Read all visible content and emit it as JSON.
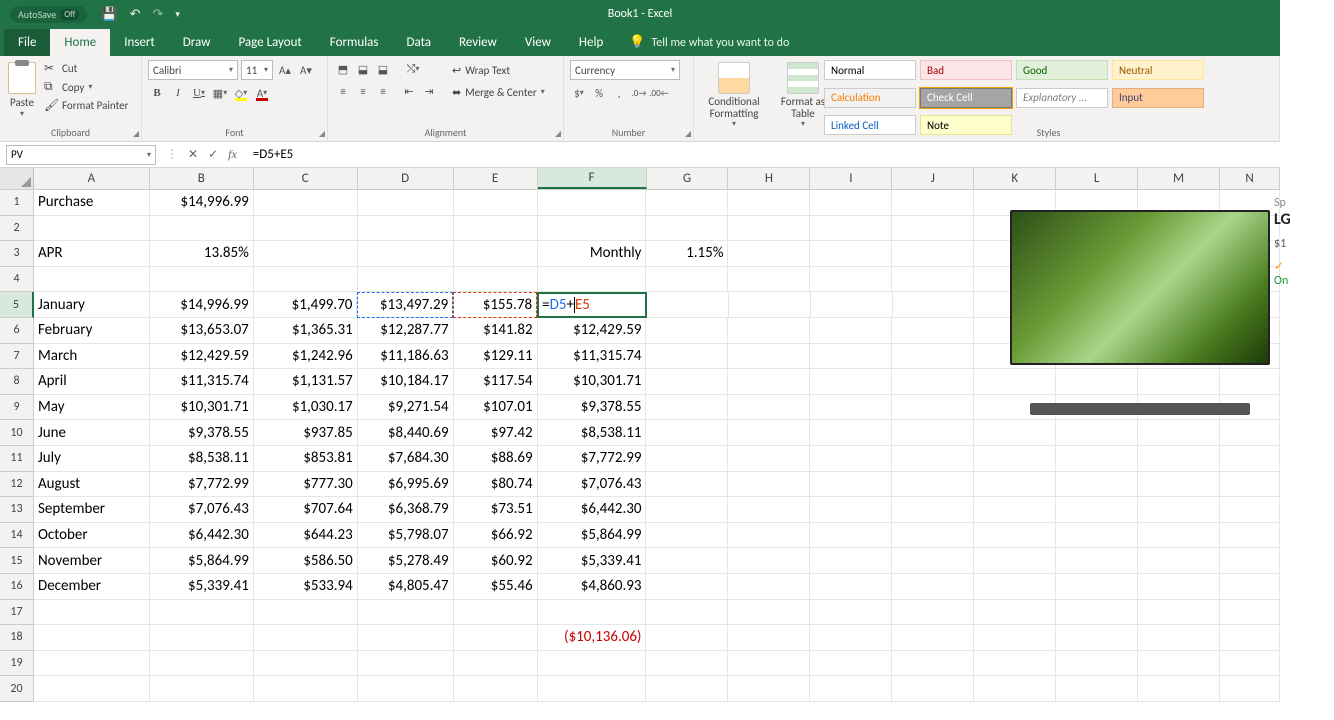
{
  "app": {
    "title": "Book1 - Excel",
    "autosave": "AutoSave",
    "autosave_state": "Off"
  },
  "ribbon": {
    "tabs": [
      "File",
      "Home",
      "Insert",
      "Draw",
      "Page Layout",
      "Formulas",
      "Data",
      "Review",
      "View",
      "Help"
    ],
    "active": "Home",
    "tellme": "Tell me what you want to do",
    "clipboard": {
      "paste": "Paste",
      "cut": "Cut",
      "copy": "Copy",
      "painter": "Format Painter",
      "label": "Clipboard"
    },
    "font": {
      "name": "Calibri",
      "size": "11",
      "label": "Font"
    },
    "alignment": {
      "wrap": "Wrap Text",
      "merge": "Merge & Center",
      "label": "Alignment"
    },
    "number": {
      "format": "Currency",
      "label": "Number"
    },
    "cond_format": "Conditional Formatting",
    "format_table": "Format as Table",
    "styles_label": "Styles",
    "styles": [
      {
        "t": "Normal",
        "bg": "#ffffff",
        "fg": "#000",
        "b": "#ccc"
      },
      {
        "t": "Bad",
        "bg": "#fbe5e6",
        "fg": "#9c0006",
        "b": "#f2c0c2"
      },
      {
        "t": "Good",
        "bg": "#e2efda",
        "fg": "#006100",
        "b": "#c6e0b4"
      },
      {
        "t": "Neutral",
        "bg": "#fff2cc",
        "fg": "#9c5700",
        "b": "#ffe699"
      },
      {
        "t": "Calculation",
        "bg": "#f2f2f2",
        "fg": "#fa7d00",
        "b": "#ccc"
      },
      {
        "t": "Check Cell",
        "bg": "#a5a5a5",
        "fg": "#fff",
        "b": "#777",
        "sel": true
      },
      {
        "t": "Explanatory ...",
        "bg": "#fff",
        "fg": "#7f7f7f",
        "b": "#ccc",
        "i": true
      },
      {
        "t": "Input",
        "bg": "#ffcc99",
        "fg": "#3f3f76",
        "b": "#e0b080"
      },
      {
        "t": "Linked Cell",
        "bg": "#fff",
        "fg": "#0563c1",
        "b": "#ccc"
      },
      {
        "t": "Note",
        "bg": "#ffffcc",
        "fg": "#000",
        "b": "#e6e68a"
      }
    ]
  },
  "formula_bar": {
    "name_box": "PV",
    "formula": "=D5+E5"
  },
  "edit_cell": {
    "prefix": "=",
    "ref1": "D5",
    "op": "+",
    "ref2": "E5"
  },
  "columns": [
    {
      "l": "A",
      "w": 116
    },
    {
      "l": "B",
      "w": 104
    },
    {
      "l": "C",
      "w": 104
    },
    {
      "l": "D",
      "w": 96
    },
    {
      "l": "E",
      "w": 84
    },
    {
      "l": "F",
      "w": 109
    },
    {
      "l": "G",
      "w": 82
    },
    {
      "l": "H",
      "w": 82
    },
    {
      "l": "I",
      "w": 82
    },
    {
      "l": "J",
      "w": 82
    },
    {
      "l": "K",
      "w": 82
    },
    {
      "l": "L",
      "w": 82
    },
    {
      "l": "M",
      "w": 82
    },
    {
      "l": "N",
      "w": 60
    }
  ],
  "active_col": "F",
  "active_row": 5,
  "rows": [
    {
      "n": 1,
      "cells": {
        "A": "Purchase",
        "B": "$14,996.99"
      }
    },
    {
      "n": 2,
      "cells": {}
    },
    {
      "n": 3,
      "cells": {
        "A": "APR",
        "B": "13.85%",
        "F": "Monthly",
        "G": "1.15%"
      }
    },
    {
      "n": 4,
      "cells": {}
    },
    {
      "n": 5,
      "cells": {
        "A": "January",
        "B": "$14,996.99",
        "C": "$1,499.70",
        "D": "$13,497.29",
        "E": "$155.78"
      },
      "edit": true
    },
    {
      "n": 6,
      "cells": {
        "A": "February",
        "B": "$13,653.07",
        "C": "$1,365.31",
        "D": "$12,287.77",
        "E": "$141.82",
        "F": "$12,429.59"
      }
    },
    {
      "n": 7,
      "cells": {
        "A": "March",
        "B": "$12,429.59",
        "C": "$1,242.96",
        "D": "$11,186.63",
        "E": "$129.11",
        "F": "$11,315.74"
      }
    },
    {
      "n": 8,
      "cells": {
        "A": "April",
        "B": "$11,315.74",
        "C": "$1,131.57",
        "D": "$10,184.17",
        "E": "$117.54",
        "F": "$10,301.71"
      }
    },
    {
      "n": 9,
      "cells": {
        "A": "May",
        "B": "$10,301.71",
        "C": "$1,030.17",
        "D": "$9,271.54",
        "E": "$107.01",
        "F": "$9,378.55"
      }
    },
    {
      "n": 10,
      "cells": {
        "A": "June",
        "B": "$9,378.55",
        "C": "$937.85",
        "D": "$8,440.69",
        "E": "$97.42",
        "F": "$8,538.11"
      }
    },
    {
      "n": 11,
      "cells": {
        "A": "July",
        "B": "$8,538.11",
        "C": "$853.81",
        "D": "$7,684.30",
        "E": "$88.69",
        "F": "$7,772.99"
      }
    },
    {
      "n": 12,
      "cells": {
        "A": "August",
        "B": "$7,772.99",
        "C": "$777.30",
        "D": "$6,995.69",
        "E": "$80.74",
        "F": "$7,076.43"
      }
    },
    {
      "n": 13,
      "cells": {
        "A": "September",
        "B": "$7,076.43",
        "C": "$707.64",
        "D": "$6,368.79",
        "E": "$73.51",
        "F": "$6,442.30"
      }
    },
    {
      "n": 14,
      "cells": {
        "A": "October",
        "B": "$6,442.30",
        "C": "$644.23",
        "D": "$5,798.07",
        "E": "$66.92",
        "F": "$5,864.99"
      }
    },
    {
      "n": 15,
      "cells": {
        "A": "November",
        "B": "$5,864.99",
        "C": "$586.50",
        "D": "$5,278.49",
        "E": "$60.92",
        "F": "$5,339.41"
      }
    },
    {
      "n": 16,
      "cells": {
        "A": "December",
        "B": "$5,339.41",
        "C": "$533.94",
        "D": "$4,805.47",
        "E": "$55.46",
        "F": "$4,860.93"
      }
    },
    {
      "n": 17,
      "cells": {}
    },
    {
      "n": 18,
      "cells": {
        "F": "($10,136.06)"
      },
      "neg": [
        "F"
      ]
    },
    {
      "n": 19,
      "cells": {}
    },
    {
      "n": 20,
      "cells": {}
    }
  ],
  "product": {
    "sp": "Sp",
    "brand": "LG",
    "price": "$1",
    "check": "✓",
    "on": "On"
  },
  "right_align_cols": [
    "B",
    "C",
    "D",
    "E",
    "F",
    "G"
  ]
}
